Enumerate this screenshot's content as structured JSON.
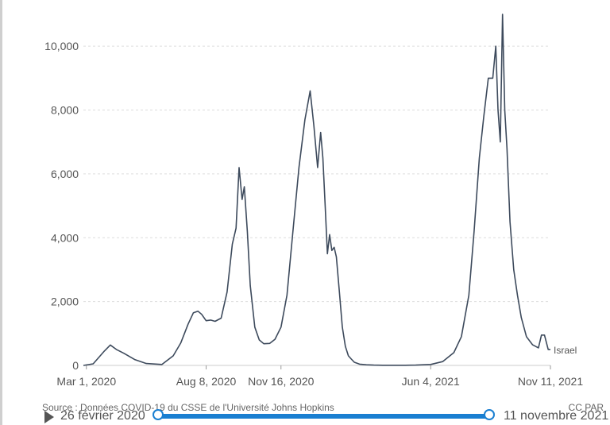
{
  "chart_data": {
    "type": "line",
    "y_ticks": [
      "0",
      "2,000",
      "4,000",
      "6,000",
      "8,000",
      "10,000"
    ],
    "y_tick_values": [
      0,
      2000,
      4000,
      6000,
      8000,
      10000
    ],
    "ylim": [
      0,
      11000
    ],
    "x_ticks": [
      "Mar 1, 2020",
      "Aug 8, 2020",
      "Nov 16, 2020",
      "Jun 4, 2021",
      "Nov 11, 2021"
    ],
    "x_tick_dates": [
      "2020-03-01",
      "2020-08-08",
      "2020-11-16",
      "2021-06-04",
      "2021-11-11"
    ],
    "xlim": [
      "2020-02-26",
      "2021-11-11"
    ],
    "grid": true,
    "line_color": "#3d4a5c",
    "series": [
      {
        "name": "Israel",
        "x": [
          "2020-02-26",
          "2020-03-10",
          "2020-03-25",
          "2020-04-02",
          "2020-04-10",
          "2020-04-20",
          "2020-05-05",
          "2020-05-20",
          "2020-06-10",
          "2020-06-25",
          "2020-07-05",
          "2020-07-15",
          "2020-07-22",
          "2020-07-28",
          "2020-08-02",
          "2020-08-08",
          "2020-08-14",
          "2020-08-20",
          "2020-08-28",
          "2020-09-05",
          "2020-09-12",
          "2020-09-17",
          "2020-09-21",
          "2020-09-25",
          "2020-09-28",
          "2020-10-02",
          "2020-10-06",
          "2020-10-12",
          "2020-10-18",
          "2020-10-24",
          "2020-11-01",
          "2020-11-08",
          "2020-11-16",
          "2020-11-24",
          "2020-12-02",
          "2020-12-10",
          "2020-12-18",
          "2020-12-25",
          "2020-12-30",
          "2021-01-04",
          "2021-01-08",
          "2021-01-11",
          "2021-01-14",
          "2021-01-17",
          "2021-01-20",
          "2021-01-23",
          "2021-01-26",
          "2021-01-29",
          "2021-02-02",
          "2021-02-06",
          "2021-02-10",
          "2021-02-14",
          "2021-02-18",
          "2021-02-22",
          "2021-03-01",
          "2021-03-10",
          "2021-03-20",
          "2021-04-01",
          "2021-04-15",
          "2021-05-01",
          "2021-05-15",
          "2021-06-04",
          "2021-06-20",
          "2021-07-05",
          "2021-07-15",
          "2021-07-25",
          "2021-08-01",
          "2021-08-08",
          "2021-08-14",
          "2021-08-20",
          "2021-08-26",
          "2021-08-30",
          "2021-09-02",
          "2021-09-05",
          "2021-09-08",
          "2021-09-11",
          "2021-09-14",
          "2021-09-18",
          "2021-09-23",
          "2021-09-28",
          "2021-10-03",
          "2021-10-10",
          "2021-10-18",
          "2021-10-26",
          "2021-10-30",
          "2021-11-03",
          "2021-11-08",
          "2021-11-11"
        ],
        "y": [
          0,
          50,
          450,
          640,
          500,
          380,
          180,
          60,
          30,
          300,
          700,
          1300,
          1650,
          1700,
          1600,
          1400,
          1420,
          1380,
          1480,
          2300,
          3800,
          4300,
          6200,
          5200,
          5600,
          4200,
          2500,
          1200,
          800,
          680,
          690,
          820,
          1200,
          2200,
          4200,
          6200,
          7700,
          8600,
          7500,
          6200,
          7300,
          6500,
          5000,
          3500,
          4100,
          3600,
          3700,
          3400,
          2300,
          1200,
          600,
          300,
          200,
          100,
          40,
          20,
          10,
          5,
          5,
          5,
          10,
          30,
          120,
          400,
          900,
          2200,
          4200,
          6500,
          7800,
          9000,
          9000,
          10000,
          8000,
          7000,
          11000,
          8000,
          6800,
          4500,
          3000,
          2200,
          1500,
          900,
          650,
          550,
          950,
          950,
          500,
          500
        ]
      }
    ]
  },
  "footer": {
    "source": "Source : Données COVID-19 du CSSE de l'Université Johns Hopkins",
    "credit": "CC PAR"
  },
  "timeline": {
    "start_date": "26 février 2020",
    "end_date": "11 novembre 2021",
    "range_fraction": [
      0,
      1
    ]
  }
}
